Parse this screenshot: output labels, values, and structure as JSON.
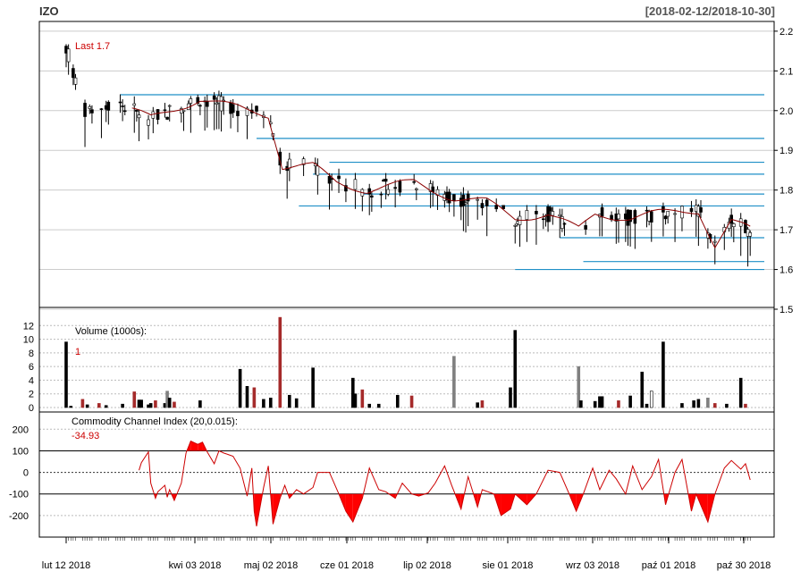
{
  "header": {
    "symbol": "IZO",
    "range": "[2018-02-12/2018-10-30]"
  },
  "colors": {
    "up": "#ffffff",
    "down": "#000000",
    "redline": "#8b0000",
    "level": "#1f8fc7",
    "cci_fill": "#ff0000",
    "volume_dark": "#000000",
    "volume_red": "#a52a2a",
    "volume_gray": "#7f7f7f"
  },
  "chart_data": [
    {
      "type": "candlestick",
      "title": "",
      "annotation": "Last 1.7",
      "ylim": [
        1.5,
        2.22
      ],
      "yticks": [
        "2.2",
        "2.1",
        "2.0",
        "1.9",
        "1.8",
        "1.7",
        "1.6",
        "1.5"
      ],
      "grid": true,
      "overlay": "moving average (red line)",
      "levels": [
        {
          "from": "2018-03-07",
          "value": 2.04
        },
        {
          "from": "2018-05-04",
          "value": 1.93
        },
        {
          "from": "2018-06-04",
          "value": 1.87
        },
        {
          "from": "2018-05-28",
          "value": 1.84
        },
        {
          "from": "2018-06-18",
          "value": 1.79
        },
        {
          "from": "2018-05-22",
          "value": 1.76
        },
        {
          "from": "2018-09-10",
          "value": 1.68
        },
        {
          "from": "2018-09-20",
          "value": 1.62
        },
        {
          "from": "2018-08-22",
          "value": 1.6
        }
      ]
    },
    {
      "type": "bar",
      "title": "Volume (1000s):",
      "last_value": "1",
      "ylim": [
        0,
        14
      ],
      "yticks": [
        "12",
        "10",
        "8",
        "6",
        "4",
        "2",
        "0"
      ],
      "bars": [
        [
          "2018-02-12",
          9.6,
          "k"
        ],
        [
          "2018-02-14",
          0.2,
          "k"
        ],
        [
          "2018-02-19",
          1.2,
          "r"
        ],
        [
          "2018-02-21",
          0.4,
          "k"
        ],
        [
          "2018-02-26",
          0.6,
          "r"
        ],
        [
          "2018-03-01",
          0.3,
          "k"
        ],
        [
          "2018-03-08",
          0.5,
          "k"
        ],
        [
          "2018-03-13",
          2.3,
          "r"
        ],
        [
          "2018-03-15",
          1.1,
          "k"
        ],
        [
          "2018-03-16",
          1.1,
          "k"
        ],
        [
          "2018-03-19",
          0.4,
          "k"
        ],
        [
          "2018-03-20",
          0.6,
          "k"
        ],
        [
          "2018-03-22",
          1.0,
          "r"
        ],
        [
          "2018-03-26",
          0.6,
          "k"
        ],
        [
          "2018-03-27",
          2.4,
          "g"
        ],
        [
          "2018-03-28",
          1.4,
          "k"
        ],
        [
          "2018-03-30",
          0.8,
          "r"
        ],
        [
          "2018-04-10",
          1.0,
          "k"
        ],
        [
          "2018-04-27",
          5.6,
          "k"
        ],
        [
          "2018-04-30",
          3.1,
          "k"
        ],
        [
          "2018-05-03",
          2.9,
          "r"
        ],
        [
          "2018-05-07",
          1.2,
          "k"
        ],
        [
          "2018-05-10",
          1.4,
          "k"
        ],
        [
          "2018-05-14",
          13.2,
          "r"
        ],
        [
          "2018-05-18",
          1.8,
          "k"
        ],
        [
          "2018-05-21",
          1.3,
          "k"
        ],
        [
          "2018-05-28",
          5.8,
          "k"
        ],
        [
          "2018-06-14",
          4.3,
          "k"
        ],
        [
          "2018-06-15",
          2.0,
          "k"
        ],
        [
          "2018-06-18",
          2.6,
          "r"
        ],
        [
          "2018-06-21",
          0.5,
          "k"
        ],
        [
          "2018-06-25",
          0.5,
          "k"
        ],
        [
          "2018-07-03",
          1.8,
          "k"
        ],
        [
          "2018-07-09",
          1.7,
          "r"
        ],
        [
          "2018-07-27",
          7.5,
          "g"
        ],
        [
          "2018-08-06",
          0.7,
          "k"
        ],
        [
          "2018-08-08",
          1.0,
          "r"
        ],
        [
          "2018-08-20",
          2.9,
          "k"
        ],
        [
          "2018-08-22",
          11.3,
          "k"
        ],
        [
          "2018-09-18",
          6.0,
          "g"
        ],
        [
          "2018-09-19",
          1.0,
          "k"
        ],
        [
          "2018-09-25",
          0.9,
          "k"
        ],
        [
          "2018-09-27",
          1.6,
          "k"
        ],
        [
          "2018-09-28",
          1.6,
          "k"
        ],
        [
          "2018-10-05",
          1.0,
          "r"
        ],
        [
          "2018-10-10",
          1.7,
          "k"
        ],
        [
          "2018-10-15",
          5.2,
          "k"
        ],
        [
          "2018-10-17",
          0.5,
          "k"
        ],
        [
          "2018-10-19",
          2.4,
          "w"
        ],
        [
          "2018-10-24",
          9.6,
          "k"
        ],
        [
          "2018-11-01",
          0.6,
          "k"
        ],
        [
          "2018-11-06",
          1.0,
          "k"
        ],
        [
          "2018-11-08",
          1.2,
          "k"
        ],
        [
          "2018-11-12",
          1.4,
          "g"
        ],
        [
          "2018-11-15",
          0.6,
          "r"
        ],
        [
          "2018-11-20",
          0.5,
          "k"
        ],
        [
          "2018-11-26",
          4.3,
          "k"
        ],
        [
          "2018-11-28",
          0.5,
          "r"
        ]
      ]
    },
    {
      "type": "line",
      "title": "Commodity Channel Index (20,0.015):",
      "last_value": "-34.93",
      "ylim": [
        -300,
        280
      ],
      "yticks": [
        "200",
        "100",
        "0",
        "-100",
        "-200"
      ],
      "reference_lines": [
        100,
        0,
        -100
      ],
      "values": [
        [
          "2018-03-15",
          10
        ],
        [
          "2018-03-16",
          45
        ],
        [
          "2018-03-19",
          95
        ],
        [
          "2018-03-20",
          -50
        ],
        [
          "2018-03-22",
          -120
        ],
        [
          "2018-03-23",
          -90
        ],
        [
          "2018-03-26",
          -60
        ],
        [
          "2018-03-27",
          -115
        ],
        [
          "2018-03-28",
          -80
        ],
        [
          "2018-03-30",
          -130
        ],
        [
          "2018-04-02",
          -50
        ],
        [
          "2018-04-04",
          90
        ],
        [
          "2018-04-06",
          145
        ],
        [
          "2018-04-09",
          130
        ],
        [
          "2018-04-11",
          140
        ],
        [
          "2018-04-13",
          95
        ],
        [
          "2018-04-16",
          40
        ],
        [
          "2018-04-18",
          100
        ],
        [
          "2018-04-20",
          90
        ],
        [
          "2018-04-24",
          75
        ],
        [
          "2018-04-27",
          20
        ],
        [
          "2018-04-30",
          -110
        ],
        [
          "2018-05-02",
          20
        ],
        [
          "2018-05-03",
          -180
        ],
        [
          "2018-05-04",
          -250
        ],
        [
          "2018-05-07",
          -70
        ],
        [
          "2018-05-09",
          30
        ],
        [
          "2018-05-11",
          -240
        ],
        [
          "2018-05-14",
          -120
        ],
        [
          "2018-05-16",
          -60
        ],
        [
          "2018-05-18",
          -120
        ],
        [
          "2018-05-21",
          -80
        ],
        [
          "2018-05-24",
          -100
        ],
        [
          "2018-05-28",
          -70
        ],
        [
          "2018-05-30",
          0
        ],
        [
          "2018-06-04",
          0
        ],
        [
          "2018-06-08",
          -100
        ],
        [
          "2018-06-11",
          -180
        ],
        [
          "2018-06-14",
          -230
        ],
        [
          "2018-06-18",
          -120
        ],
        [
          "2018-06-21",
          20
        ],
        [
          "2018-06-25",
          -80
        ],
        [
          "2018-06-28",
          -90
        ],
        [
          "2018-07-02",
          -120
        ],
        [
          "2018-07-05",
          -50
        ],
        [
          "2018-07-09",
          -100
        ],
        [
          "2018-07-12",
          -110
        ],
        [
          "2018-07-16",
          -95
        ],
        [
          "2018-07-19",
          -50
        ],
        [
          "2018-07-23",
          30
        ],
        [
          "2018-07-26",
          -60
        ],
        [
          "2018-07-30",
          -170
        ],
        [
          "2018-08-02",
          -20
        ],
        [
          "2018-08-06",
          -160
        ],
        [
          "2018-08-08",
          -80
        ],
        [
          "2018-08-13",
          -100
        ],
        [
          "2018-08-16",
          -200
        ],
        [
          "2018-08-20",
          -170
        ],
        [
          "2018-08-22",
          -100
        ],
        [
          "2018-08-27",
          -150
        ],
        [
          "2018-08-31",
          -100
        ],
        [
          "2018-09-05",
          10
        ],
        [
          "2018-09-10",
          0
        ],
        [
          "2018-09-14",
          -100
        ],
        [
          "2018-09-17",
          -180
        ],
        [
          "2018-09-20",
          -100
        ],
        [
          "2018-09-24",
          20
        ],
        [
          "2018-09-27",
          -80
        ],
        [
          "2018-10-01",
          10
        ],
        [
          "2018-10-04",
          -30
        ],
        [
          "2018-10-08",
          -100
        ],
        [
          "2018-10-11",
          30
        ],
        [
          "2018-10-15",
          -80
        ],
        [
          "2018-10-19",
          -20
        ],
        [
          "2018-10-22",
          60
        ],
        [
          "2018-10-25",
          -150
        ],
        [
          "2018-10-29",
          0
        ],
        [
          "2018-11-01",
          60
        ],
        [
          "2018-11-05",
          -180
        ],
        [
          "2018-11-07",
          -100
        ],
        [
          "2018-11-12",
          -230
        ],
        [
          "2018-11-15",
          -100
        ],
        [
          "2018-11-19",
          20
        ],
        [
          "2018-11-22",
          55
        ],
        [
          "2018-11-26",
          15
        ],
        [
          "2018-11-28",
          40
        ],
        [
          "2018-11-30",
          -35
        ]
      ]
    }
  ],
  "xaxis": {
    "tick_labels": [
      "lut 12 2018",
      "kwi 03 2018",
      "maj 02 2018",
      "cze 01 2018",
      "lip 02 2018",
      "sie 01 2018",
      "wrz 03 2018",
      "paź 01 2018",
      "paź 30 2018"
    ]
  }
}
